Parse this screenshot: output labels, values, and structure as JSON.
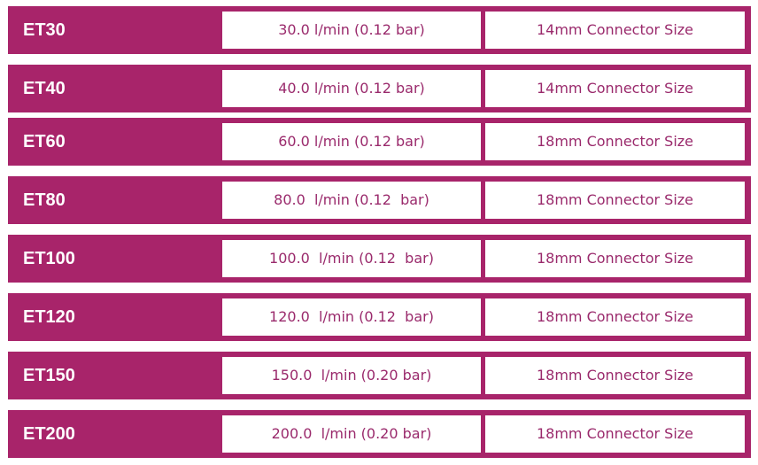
{
  "colors": {
    "row_background": "#a8246a",
    "cell_text": "#9a2a6c"
  },
  "rows": [
    {
      "model": "ET30",
      "flow": "30.0 l/min (0.12 bar)",
      "connector": "14mm Connector Size"
    },
    {
      "model": "ET40",
      "flow": "40.0 l/min (0.12 bar)",
      "connector": "14mm Connector Size"
    },
    {
      "model": "ET60",
      "flow": "60.0 l/min (0.12 bar)",
      "connector": "18mm Connector Size"
    },
    {
      "model": "ET80",
      "flow": "80.0  l/min (0.12  bar)",
      "connector": "18mm Connector Size"
    },
    {
      "model": "ET100",
      "flow": "100.0  l/min (0.12  bar)",
      "connector": "18mm Connector Size"
    },
    {
      "model": "ET120",
      "flow": "120.0  l/min (0.12  bar)",
      "connector": "18mm Connector Size"
    },
    {
      "model": "ET150",
      "flow": "150.0  l/min (0.20 bar)",
      "connector": "18mm Connector Size"
    },
    {
      "model": "ET200",
      "flow": "200.0  l/min (0.20 bar)",
      "connector": "18mm Connector Size"
    }
  ]
}
